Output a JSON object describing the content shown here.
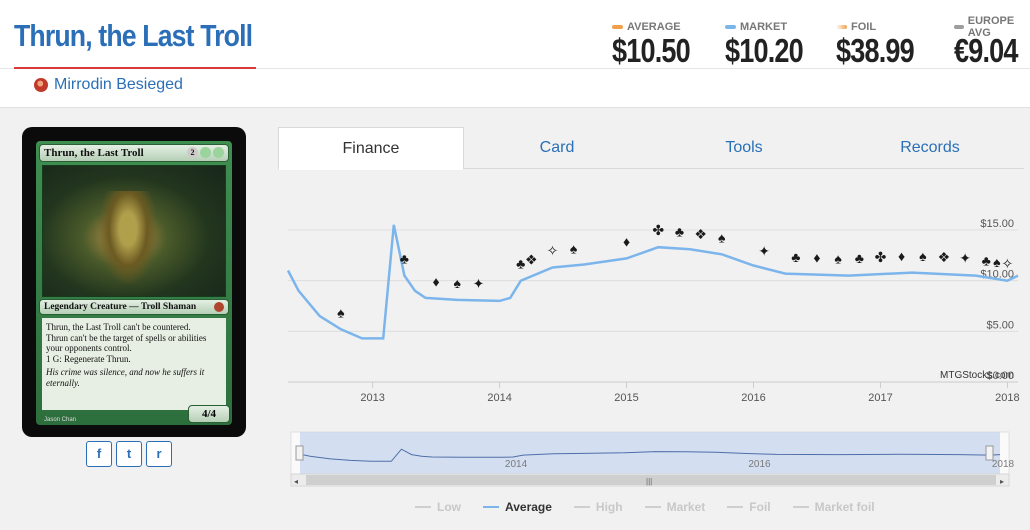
{
  "card": {
    "title": "Thrun, the Last Troll",
    "set_name": "Mirrodin Besieged",
    "image": {
      "name": "Thrun, the Last Troll",
      "mana": [
        "2",
        "G",
        "G"
      ],
      "type_line": "Legendary Creature — Troll Shaman",
      "rules": [
        "Thrun, the Last Troll can't be countered.",
        "Thrun can't be the target of spells or abilities your opponents control.",
        "1 G: Regenerate Thrun."
      ],
      "flavor": "His crime was silence, and now he suffers it eternally.",
      "pt": "4/4",
      "artist": "Jason Chan"
    }
  },
  "prices": [
    {
      "label": "AVERAGE",
      "value": "$10.50",
      "color": "#f0a04b"
    },
    {
      "label": "MARKET",
      "value": "$10.20",
      "color": "#7cb5ec"
    },
    {
      "label": "FOIL",
      "value": "$38.99",
      "color": "#f7c59f"
    },
    {
      "label": "EUROPE AVG",
      "value": "€9.04",
      "color": "#9e9e9e"
    }
  ],
  "share": {
    "facebook": "f",
    "twitter": "t",
    "reddit": "r"
  },
  "tabs": [
    "Finance",
    "Card",
    "Tools",
    "Records"
  ],
  "active_tab": "Finance",
  "chart": {
    "watermark": "MTGStocks.com",
    "y_ticks": [
      "$15.00",
      "$10.00",
      "$5.00",
      "$0.00"
    ],
    "x_ticks": [
      "2013",
      "2014",
      "2015",
      "2016",
      "2017",
      "2018"
    ],
    "navigator_ticks": [
      "2014",
      "2016",
      "2018"
    ],
    "legend": [
      {
        "label": "Low",
        "active": false
      },
      {
        "label": "Average",
        "active": true
      },
      {
        "label": "High",
        "active": false
      },
      {
        "label": "Market",
        "active": false
      },
      {
        "label": "Foil",
        "active": false
      },
      {
        "label": "Market foil",
        "active": false
      }
    ]
  },
  "chart_data": {
    "type": "line",
    "series": [
      {
        "name": "Average",
        "color": "#7cb5ec",
        "points": [
          [
            "2012-05",
            11.0
          ],
          [
            "2012-06",
            9.0
          ],
          [
            "2012-08",
            6.5
          ],
          [
            "2012-10",
            5.2
          ],
          [
            "2012-12",
            4.3
          ],
          [
            "2013-02",
            4.3
          ],
          [
            "2013-03",
            15.5
          ],
          [
            "2013-04",
            10.5
          ],
          [
            "2013-05",
            9.0
          ],
          [
            "2013-06",
            8.3
          ],
          [
            "2013-09",
            8.1
          ],
          [
            "2014-01",
            8.0
          ],
          [
            "2014-02",
            8.3
          ],
          [
            "2014-03",
            10.0
          ],
          [
            "2014-06",
            11.3
          ],
          [
            "2014-09",
            11.6
          ],
          [
            "2015-01",
            12.2
          ],
          [
            "2015-04",
            13.3
          ],
          [
            "2015-07",
            13.1
          ],
          [
            "2015-10",
            12.6
          ],
          [
            "2016-01",
            11.5
          ],
          [
            "2016-04",
            10.7
          ],
          [
            "2016-10",
            10.5
          ],
          [
            "2017-04",
            10.8
          ],
          [
            "2017-10",
            10.5
          ],
          [
            "2018-01",
            10.0
          ],
          [
            "2018-02",
            10.5
          ]
        ]
      }
    ],
    "yrange": [
      0,
      15
    ],
    "xrange": [
      "2012-05",
      "2018-02"
    ]
  }
}
